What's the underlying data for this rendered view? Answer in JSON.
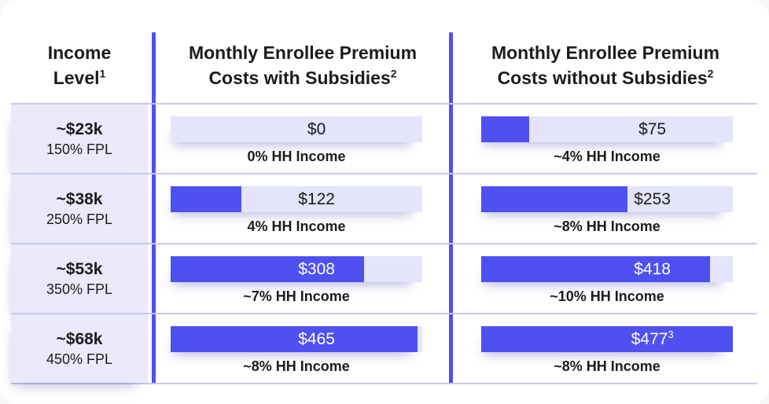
{
  "headers": {
    "income": {
      "line1": "Income",
      "line2": "Level",
      "sup": "1"
    },
    "with": {
      "line1": "Monthly Enrollee Premium",
      "line2": "Costs with Subsidies",
      "sup": "2"
    },
    "without": {
      "line1": "Monthly Enrollee Premium",
      "line2": "Costs without Subsidies",
      "sup": "2"
    }
  },
  "colors": {
    "accent_blue": "#4f50f2",
    "bar_track": "#e4e4fa",
    "income_cell_bg": "#e9e9fa",
    "row_border": "#c8c8ec",
    "text_dark": "#1c1c1e",
    "text_on_fill": "#ffffff"
  },
  "chart_data": {
    "type": "bar",
    "orientation": "horizontal",
    "title": "",
    "categories": [
      "~$23k / 150% FPL",
      "~$38k / 250% FPL",
      "~$53k / 350% FPL",
      "~$68k / 450% FPL"
    ],
    "series": [
      {
        "name": "Monthly Enrollee Premium Costs with Subsidies",
        "values": [
          0,
          122,
          308,
          465
        ],
        "pct_of_income": [
          "0% HH Income",
          "4% HH Income",
          "~7% HH Income",
          "~8% HH Income"
        ]
      },
      {
        "name": "Monthly Enrollee Premium Costs without Subsidies",
        "values": [
          75,
          253,
          418,
          477
        ],
        "pct_of_income": [
          "~4% HH Income",
          "~8% HH Income",
          "~10% HH Income",
          "~8% HH Income"
        ]
      }
    ],
    "legend_position": "none",
    "grid": false,
    "rows": [
      {
        "income": "~$23k",
        "fpl": "150% FPL",
        "with_subsidies": {
          "value": 0,
          "label": "$0",
          "sup": "",
          "pct": "0% HH Income",
          "fill": 0.0
        },
        "without_subsidies": {
          "value": 75,
          "label": "$75",
          "sup": "",
          "pct": "~4% HH Income",
          "fill": 0.19
        }
      },
      {
        "income": "~$38k",
        "fpl": "250% FPL",
        "with_subsidies": {
          "value": 122,
          "label": "$122",
          "sup": "",
          "pct": "4% HH Income",
          "fill": 0.28
        },
        "without_subsidies": {
          "value": 253,
          "label": "$253",
          "sup": "",
          "pct": "~8% HH Income",
          "fill": 0.58
        }
      },
      {
        "income": "~$53k",
        "fpl": "350% FPL",
        "with_subsidies": {
          "value": 308,
          "label": "$308",
          "sup": "",
          "pct": "~7% HH Income",
          "fill": 0.77
        },
        "without_subsidies": {
          "value": 418,
          "label": "$418",
          "sup": "",
          "pct": "~10% HH Income",
          "fill": 0.91
        }
      },
      {
        "income": "~$68k",
        "fpl": "450% FPL",
        "with_subsidies": {
          "value": 465,
          "label": "$465",
          "sup": "",
          "pct": "~8% HH Income",
          "fill": 0.98
        },
        "without_subsidies": {
          "value": 477,
          "label": "$477",
          "sup": "3",
          "pct": "~8% HH Income",
          "fill": 1.0
        }
      }
    ]
  }
}
